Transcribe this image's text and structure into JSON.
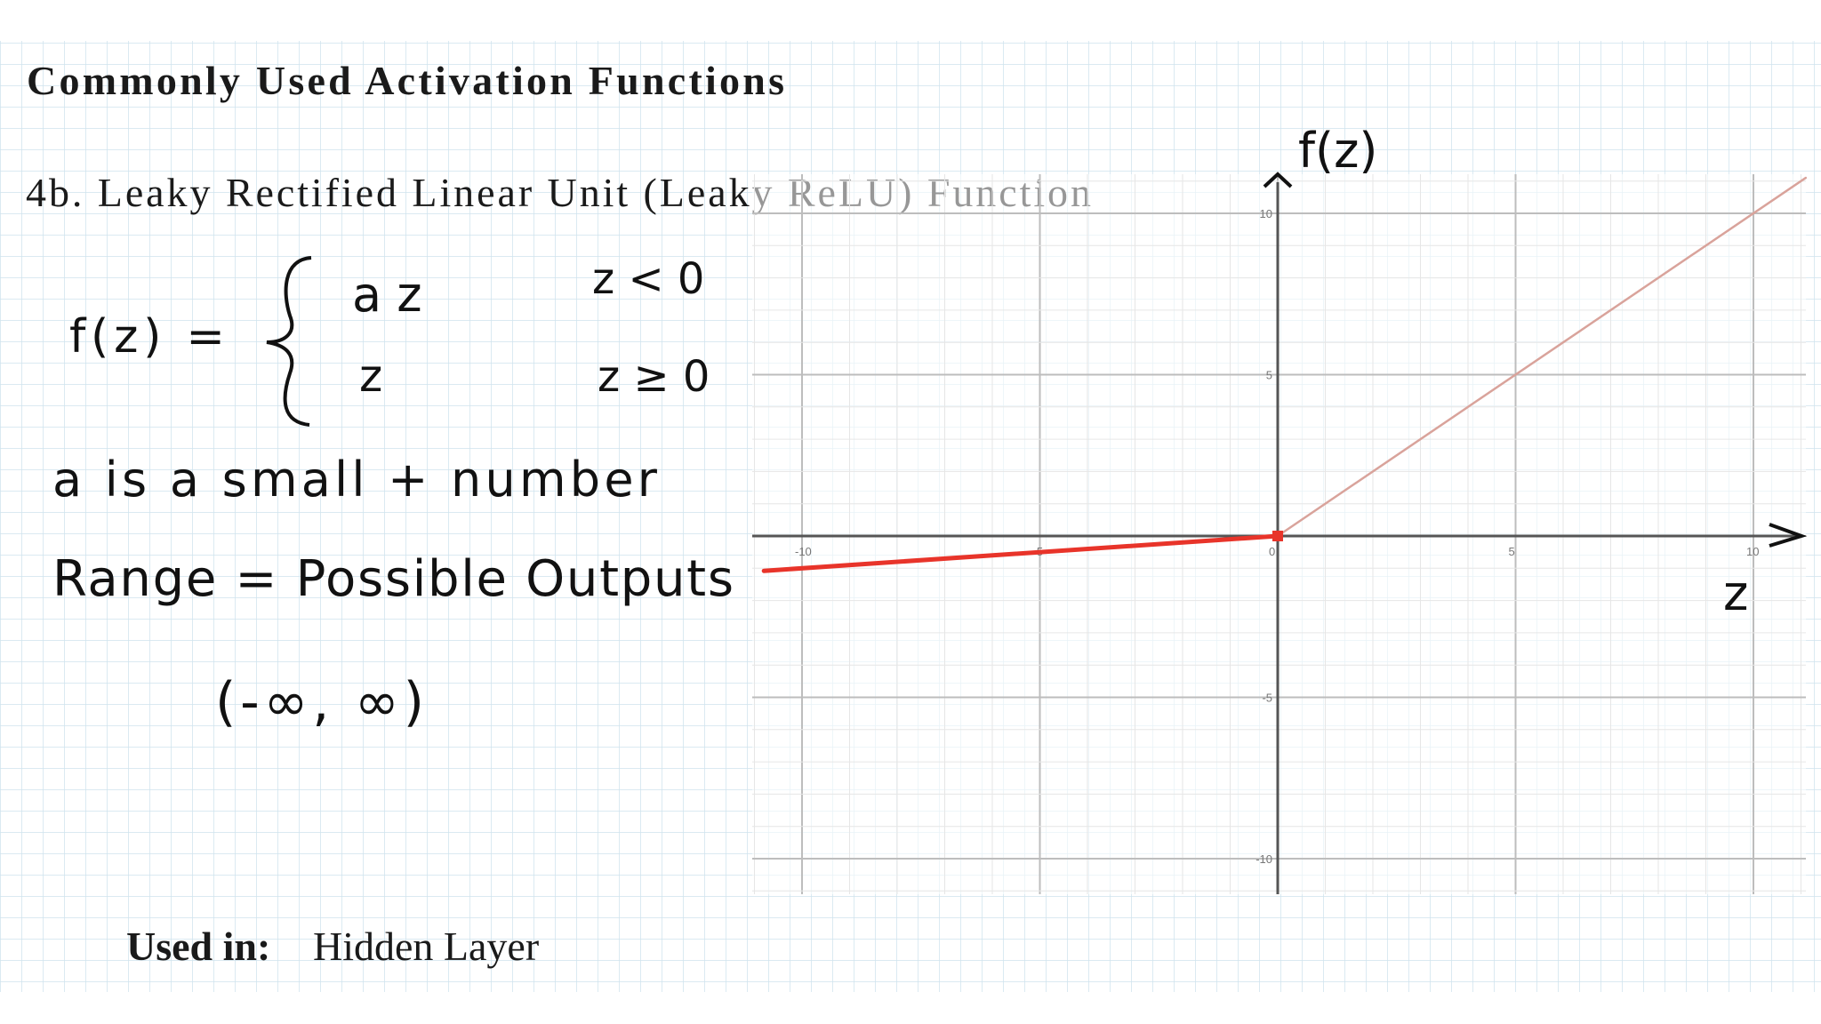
{
  "slide": {
    "title": "Commonly Used Activation Functions",
    "subtitle": "4b. Leaky Rectified Linear Unit (Leaky ReLU) Function",
    "used_in_label": "Used in:",
    "used_in_value": "Hidden Layer"
  },
  "handwriting": {
    "f_lhs": "f(z) =",
    "case1_expr": "a z",
    "case1_cond": "z < 0",
    "case2_expr": "z",
    "case2_cond": "z ≥ 0",
    "note": "a is a small + number",
    "range_def": "Range = Possible Outputs",
    "range_value": "(-∞, ∞)",
    "y_axis_label": "f(z)",
    "x_axis_label": "z"
  },
  "colors": {
    "paper_grid": "#cfe3ee",
    "negative_segment": "#e8342a",
    "positive_segment": "#d9a39b",
    "axis": "#555555"
  },
  "chart_data": {
    "type": "line",
    "title": "",
    "xlabel": "z",
    "ylabel": "f(z)",
    "xlim": [
      -11.5,
      11.2
    ],
    "ylim": [
      -11.2,
      11.4
    ],
    "grid": true,
    "x_ticks": [
      "-10",
      "-5",
      "0",
      "5",
      "10"
    ],
    "y_ticks": [
      "10",
      "5",
      "-5",
      "-10"
    ],
    "series": [
      {
        "x": [
          -10.8,
          0
        ],
        "y": [
          -1.08,
          0
        ],
        "color": "#e8342a"
      },
      {
        "x": [
          0,
          11.1
        ],
        "y": [
          0,
          11.1
        ],
        "color": "#d9a39b"
      }
    ],
    "highlight_point": {
      "x": 0,
      "y": 0
    }
  }
}
